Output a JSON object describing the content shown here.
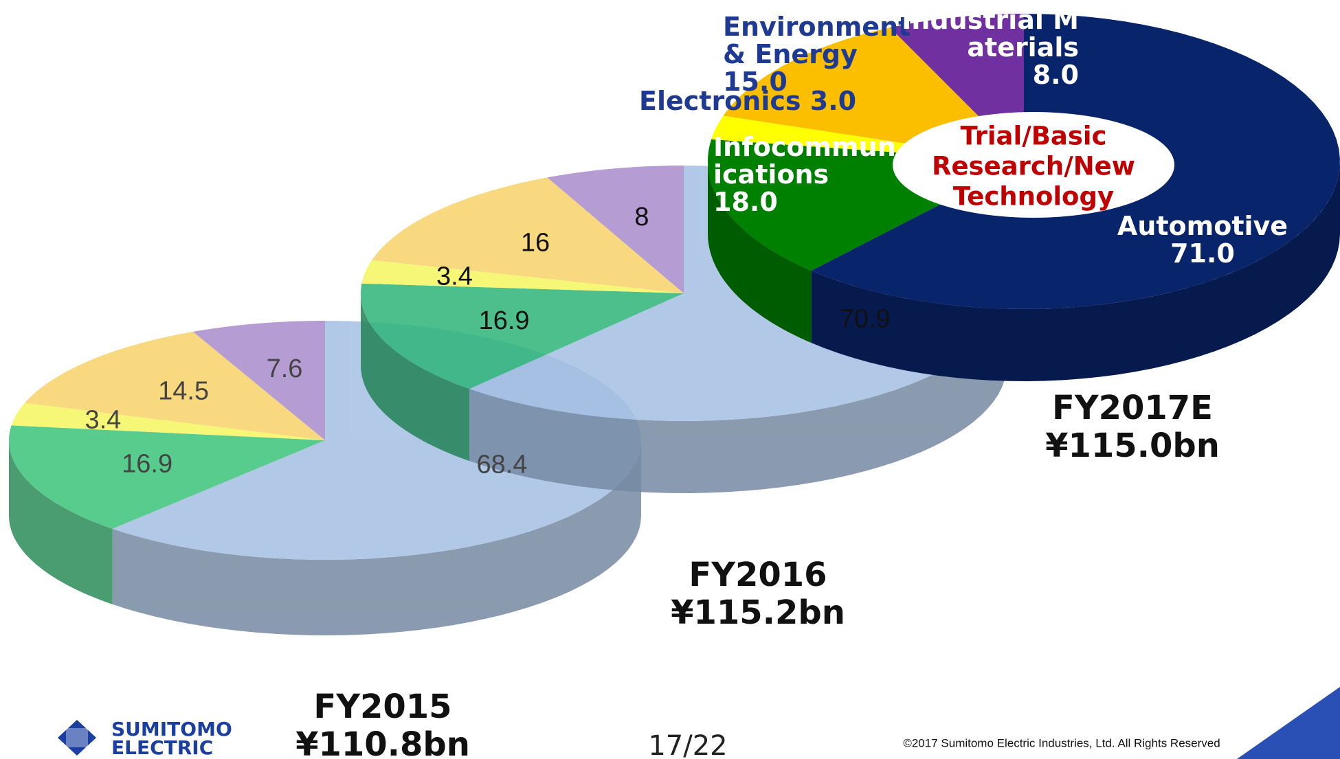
{
  "chart_data": [
    {
      "type": "pie",
      "title": "FY2015",
      "subtitle": "¥110.8bn",
      "values": [
        68.4,
        16.9,
        3.4,
        14.5,
        7.6
      ],
      "colors": [
        "#a4bfe3",
        "#3cc47a",
        "#f5f560",
        "#f7d36a",
        "#a98bcc"
      ]
    },
    {
      "type": "pie",
      "title": "FY2016",
      "subtitle": "¥115.2bn",
      "values": [
        70.9,
        16.9,
        3.4,
        16,
        8
      ],
      "colors": [
        "#a4bfe3",
        "#2fb579",
        "#f5f560",
        "#f7d36a",
        "#a98bcc"
      ]
    },
    {
      "type": "pie",
      "title": "FY2017E",
      "subtitle": "¥115.0bn",
      "categories": [
        "Automotive",
        "Infocommunications",
        "Electronics",
        "Environment & Energy",
        "Industrial Materials"
      ],
      "values": [
        71,
        18,
        3,
        15,
        8
      ],
      "value_labels": [
        "71.0",
        "18.0",
        "3.0",
        "15.0",
        "8.0"
      ],
      "colors": [
        "#08246b",
        "#008000",
        "#ffff00",
        "#fbbf00",
        "#7030a0"
      ],
      "label_colors": [
        "#ffffff",
        "#ffffff",
        "#1f3a93",
        "#1f3a93",
        "#ffffff"
      ],
      "annotation": [
        "Trial/Basic",
        "Research/New",
        "Technology"
      ]
    }
  ],
  "footer": {
    "logo": [
      "SUMITOMO",
      "ELECTRIC"
    ],
    "page": "17/22",
    "copyright": "©2017 Sumitomo Electric Industries, Ltd. All Rights Reserved"
  }
}
